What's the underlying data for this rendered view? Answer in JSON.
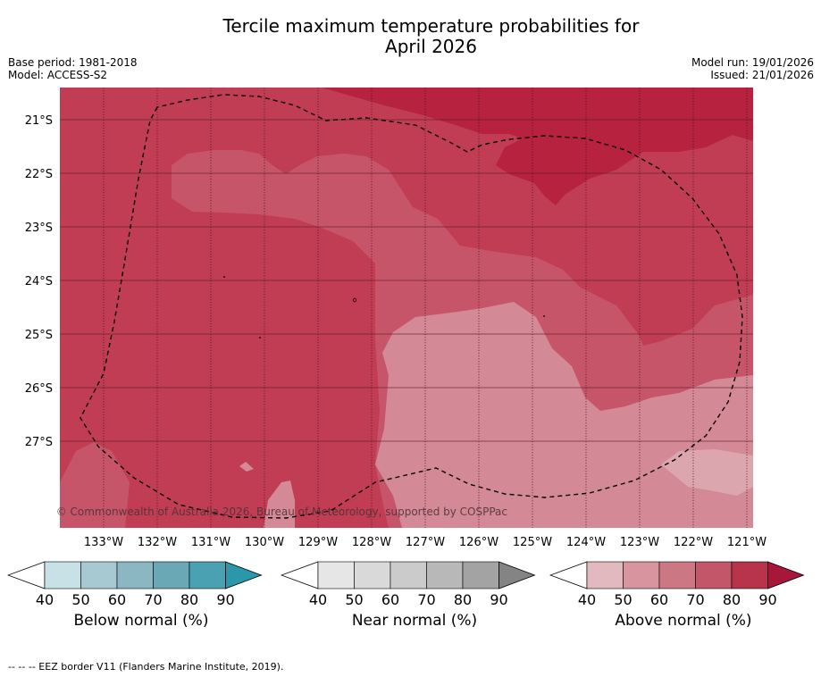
{
  "title": {
    "line1": "Tercile maximum temperature probabilities for",
    "line2": "April 2026"
  },
  "meta": {
    "base_period": "Base period: 1981-2018",
    "model": "Model: ACCESS-S2",
    "model_run": "Model run: 19/01/2026",
    "issued": "Issued: 21/01/2026"
  },
  "map": {
    "lat_labels": [
      "21°S",
      "22°S",
      "23°S",
      "24°S",
      "25°S",
      "26°S",
      "27°S"
    ],
    "lon_labels": [
      "133°W",
      "132°W",
      "131°W",
      "130°W",
      "129°W",
      "128°W",
      "127°W",
      "126°W",
      "125°W",
      "124°W",
      "123°W",
      "122°W",
      "121°W"
    ],
    "copyright": "© Commonwealth of Australia 2026, Bureau of Meteorology, supported by COSPPac",
    "colors": {
      "above_80_90": "#b7223e",
      "above_70_80": "#c13d54",
      "above_60_70": "#c7556a",
      "above_50_60": "#d38a96",
      "eez_border": "#000000"
    }
  },
  "legends": [
    {
      "name": "below",
      "caption": "Below normal (%)",
      "ticks": [
        "40",
        "50",
        "60",
        "70",
        "80",
        "90"
      ],
      "colors": [
        "#ffffff",
        "#c8e1e7",
        "#a7cad2",
        "#8ab7c2",
        "#6aa8b6",
        "#4aa1b1",
        "#2b97ab"
      ]
    },
    {
      "name": "near",
      "caption": "Near normal (%)",
      "ticks": [
        "40",
        "50",
        "60",
        "70",
        "80",
        "90"
      ],
      "colors": [
        "#ffffff",
        "#e6e6e6",
        "#d9d9d9",
        "#cbcbcb",
        "#b8b8b8",
        "#a3a3a3",
        "#848484"
      ]
    },
    {
      "name": "above",
      "caption": "Above normal (%)",
      "ticks": [
        "40",
        "50",
        "60",
        "70",
        "80",
        "90"
      ],
      "colors": [
        "#ffffff",
        "#e3b9c0",
        "#d8959f",
        "#cc7884",
        "#c4566a",
        "#b7344a",
        "#a8173a"
      ]
    }
  ],
  "footnote": "--  --  -- EEZ border V11 (Flanders Marine Institute, 2019)."
}
